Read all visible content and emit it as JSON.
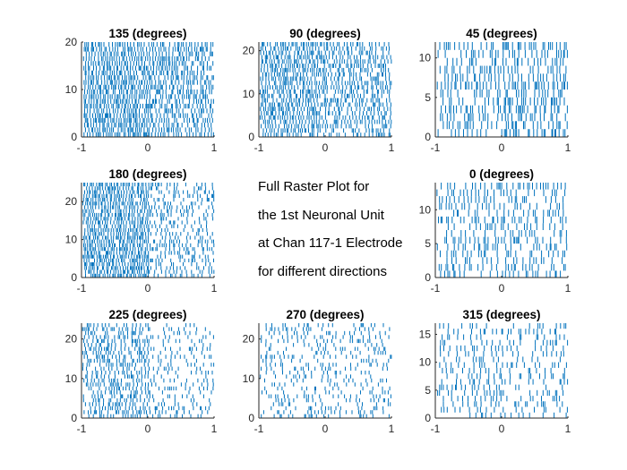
{
  "annotation": {
    "lines": [
      "Full Raster Plot for",
      "the 1st Neuronal Unit",
      "at Chan 117-1 Electrode",
      "for different directions"
    ]
  },
  "colors": {
    "spike": "#0072BD",
    "axis": "#262626"
  },
  "chart_data": [
    {
      "type": "raster",
      "title": "135 (degrees)",
      "xlim": [
        -1,
        1
      ],
      "ylim": [
        0,
        20
      ],
      "xticks": [
        -1,
        0,
        1
      ],
      "yticks": [
        0,
        10,
        20
      ],
      "xticklabels": [
        "-1",
        "0",
        "1"
      ],
      "yticklabels": [
        "0",
        "10",
        "20"
      ],
      "trials": 20,
      "spike_density": 0.78,
      "late_density": 0.7
    },
    {
      "type": "raster",
      "title": "90 (degrees)",
      "xlim": [
        -1,
        1
      ],
      "ylim": [
        0,
        22
      ],
      "xticks": [
        -1,
        0,
        1
      ],
      "yticks": [
        0,
        10,
        20
      ],
      "xticklabels": [
        "-1",
        "0",
        "1"
      ],
      "yticklabels": [
        "0",
        "10",
        "20"
      ],
      "trials": 22,
      "spike_density": 0.75,
      "late_density": 0.65
    },
    {
      "type": "raster",
      "title": "45 (degrees)",
      "xlim": [
        -1,
        1
      ],
      "ylim": [
        0,
        12
      ],
      "xticks": [
        -1,
        0,
        1
      ],
      "yticks": [
        0,
        5,
        10
      ],
      "xticklabels": [
        "-1",
        "0",
        "1"
      ],
      "yticklabels": [
        "0",
        "5",
        "10"
      ],
      "trials": 12,
      "spike_density": 0.5,
      "late_density": 0.6
    },
    {
      "type": "raster",
      "title": "180 (degrees)",
      "xlim": [
        -1,
        1
      ],
      "ylim": [
        0,
        25
      ],
      "xticks": [
        -1,
        0,
        1
      ],
      "yticks": [
        0,
        10,
        20
      ],
      "xticklabels": [
        "-1",
        "0",
        "1"
      ],
      "yticklabels": [
        "0",
        "10",
        "20"
      ],
      "trials": 25,
      "spike_density": 0.8,
      "late_density": 0.45
    },
    {
      "type": "raster",
      "title": "0 (degrees)",
      "xlim": [
        -1,
        1
      ],
      "ylim": [
        0,
        14
      ],
      "xticks": [
        -1,
        0,
        1
      ],
      "yticks": [
        0,
        5,
        10
      ],
      "xticklabels": [
        "-1",
        "0",
        "1"
      ],
      "yticklabels": [
        "0",
        "5",
        "10"
      ],
      "trials": 14,
      "spike_density": 0.45,
      "late_density": 0.45
    },
    {
      "type": "raster",
      "title": "225 (degrees)",
      "xlim": [
        -1,
        1
      ],
      "ylim": [
        0,
        24
      ],
      "xticks": [
        -1,
        0,
        1
      ],
      "yticks": [
        0,
        10,
        20
      ],
      "xticklabels": [
        "-1",
        "0",
        "1"
      ],
      "yticklabels": [
        "0",
        "10",
        "20"
      ],
      "trials": 24,
      "spike_density": 0.6,
      "late_density": 0.3
    },
    {
      "type": "raster",
      "title": "270 (degrees)",
      "xlim": [
        -1,
        1
      ],
      "ylim": [
        0,
        24
      ],
      "xticks": [
        -1,
        0,
        1
      ],
      "yticks": [
        0,
        10,
        20
      ],
      "xticklabels": [
        "-1",
        "0",
        "1"
      ],
      "yticklabels": [
        "0",
        "10",
        "20"
      ],
      "trials": 24,
      "spike_density": 0.35,
      "late_density": 0.3
    },
    {
      "type": "raster",
      "title": "315 (degrees)",
      "xlim": [
        -1,
        1
      ],
      "ylim": [
        0,
        17
      ],
      "xticks": [
        -1,
        0,
        1
      ],
      "yticks": [
        0,
        5,
        10,
        15
      ],
      "xticklabels": [
        "-1",
        "0",
        "1"
      ],
      "yticklabels": [
        "0",
        "5",
        "10",
        "15"
      ],
      "trials": 17,
      "spike_density": 0.35,
      "late_density": 0.3
    }
  ]
}
